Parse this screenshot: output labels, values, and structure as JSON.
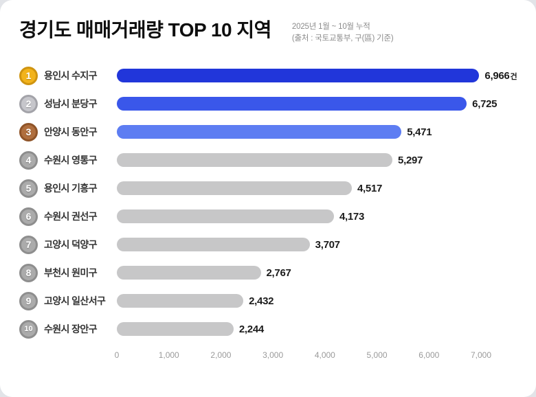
{
  "header": {
    "title": "경기도 매매거래량 TOP 10 지역",
    "subtitle_line1": "2025년 1월 ~ 10월 누적",
    "subtitle_line2": "(출처 : 국토교통부, 구(區) 기준)"
  },
  "colors": {
    "bar_rank1": "#2136da",
    "bar_rank2": "#3a57ea",
    "bar_rank3": "#5d7df2",
    "bar_gray": "#c7c7c8",
    "badge_gold_bg": "#f2b31b",
    "badge_gold_ring": "#cf9410",
    "badge_silver_bg": "#c6c6cb",
    "badge_silver_ring": "#a3a3a9",
    "badge_bronze_bg": "#b06f3e",
    "badge_bronze_ring": "#8f5428",
    "badge_gray_bg": "#ababab",
    "badge_gray_ring": "#8e8e8e",
    "value_text": "#1b1b1b",
    "label_text": "#333333",
    "tick_text": "#9a9a9a"
  },
  "chart_data": {
    "type": "bar",
    "orientation": "horizontal",
    "title": "경기도 매매거래량 TOP 10 지역",
    "xlabel": "",
    "ylabel": "",
    "xlim": [
      0,
      7000
    ],
    "x_ticks": [
      "0",
      "1,000",
      "2,000",
      "3,000",
      "4,000",
      "5,000",
      "6,000",
      "7,000"
    ],
    "unit_suffix": "건",
    "categories": [
      "용인시 수지구",
      "성남시 분당구",
      "안양시 동안구",
      "수원시 영통구",
      "용인시 기흥구",
      "수원시 권선구",
      "고양시 덕양구",
      "부천시 원미구",
      "고양시 일산서구",
      "수원시 장안구"
    ],
    "values": [
      6966,
      6725,
      5471,
      5297,
      4517,
      4173,
      3707,
      2767,
      2432,
      2244
    ],
    "rows": [
      {
        "rank": "1",
        "label": "용인시 수지구",
        "value": 6966,
        "display": "6,966",
        "tier": "gold",
        "bar": "rank1",
        "show_unit": true
      },
      {
        "rank": "2",
        "label": "성남시 분당구",
        "value": 6725,
        "display": "6,725",
        "tier": "silver",
        "bar": "rank2",
        "show_unit": false
      },
      {
        "rank": "3",
        "label": "안양시 동안구",
        "value": 5471,
        "display": "5,471",
        "tier": "bronze",
        "bar": "rank3",
        "show_unit": false
      },
      {
        "rank": "4",
        "label": "수원시 영통구",
        "value": 5297,
        "display": "5,297",
        "tier": "gray",
        "bar": "gray",
        "show_unit": false
      },
      {
        "rank": "5",
        "label": "용인시 기흥구",
        "value": 4517,
        "display": "4,517",
        "tier": "gray",
        "bar": "gray",
        "show_unit": false
      },
      {
        "rank": "6",
        "label": "수원시 권선구",
        "value": 4173,
        "display": "4,173",
        "tier": "gray",
        "bar": "gray",
        "show_unit": false
      },
      {
        "rank": "7",
        "label": "고양시 덕양구",
        "value": 3707,
        "display": "3,707",
        "tier": "gray",
        "bar": "gray",
        "show_unit": false
      },
      {
        "rank": "8",
        "label": "부천시 원미구",
        "value": 2767,
        "display": "2,767",
        "tier": "gray",
        "bar": "gray",
        "show_unit": false
      },
      {
        "rank": "9",
        "label": "고양시 일산서구",
        "value": 2432,
        "display": "2,432",
        "tier": "gray",
        "bar": "gray",
        "show_unit": false
      },
      {
        "rank": "10",
        "label": "수원시 장안구",
        "value": 2244,
        "display": "2,244",
        "tier": "gray",
        "bar": "gray",
        "show_unit": false
      }
    ]
  }
}
